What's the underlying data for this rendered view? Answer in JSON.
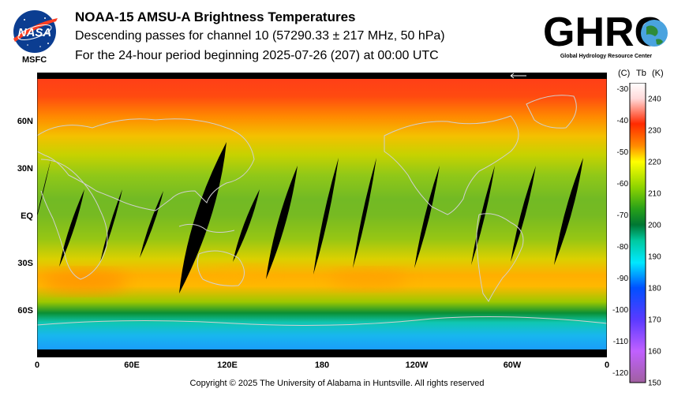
{
  "header": {
    "title": "NOAA-15 AMSU-A Brightness Temperatures",
    "subtitle1": "Descending passes for channel 10 (57290.33 ± 217 MHz, 50 hPa)",
    "subtitle2": "For the 24-hour period beginning 2025-07-26 (207) at 00:00 UTC"
  },
  "logos": {
    "nasa_text": "NASA",
    "msfc_text": "MSFC",
    "ghrc_text": "GHRC",
    "ghrc_tagline": "Global Hydrology Resource Center"
  },
  "map": {
    "lat_labels": [
      "60N",
      "30N",
      "EQ",
      "30S",
      "60S"
    ],
    "lon_labels": [
      "0",
      "60E",
      "120E",
      "180",
      "120W",
      "60W",
      "0"
    ],
    "gradient_stops": [
      {
        "lat": 90,
        "color": "#ff3b1a"
      },
      {
        "lat": 75,
        "color": "#ff4a10"
      },
      {
        "lat": 62,
        "color": "#ff8a00"
      },
      {
        "lat": 50,
        "color": "#f4c000"
      },
      {
        "lat": 38,
        "color": "#c6d200"
      },
      {
        "lat": 25,
        "color": "#90c818"
      },
      {
        "lat": 10,
        "color": "#72ba24"
      },
      {
        "lat": 0,
        "color": "#76ba22"
      },
      {
        "lat": -15,
        "color": "#96c614"
      },
      {
        "lat": -28,
        "color": "#dcd000"
      },
      {
        "lat": -38,
        "color": "#ffae00"
      },
      {
        "lat": -45,
        "color": "#ffb800"
      },
      {
        "lat": -55,
        "color": "#9cc800"
      },
      {
        "lat": -62,
        "color": "#0a8f35"
      },
      {
        "lat": -68,
        "color": "#10c7b2"
      },
      {
        "lat": -76,
        "color": "#18b7ee"
      },
      {
        "lat": -90,
        "color": "#1a8fff"
      }
    ]
  },
  "colorbar": {
    "unit_c": "(C)",
    "unit_tb": "Tb",
    "unit_k": "(K)",
    "celsius_ticks": [
      "-30",
      "-40",
      "-50",
      "-60",
      "-70",
      "-80",
      "-90",
      "-100",
      "-110",
      "-120"
    ],
    "kelvin_ticks": [
      "240",
      "230",
      "220",
      "210",
      "200",
      "190",
      "180",
      "170",
      "160",
      "150"
    ],
    "stops": [
      {
        "k": 245,
        "color": "#ffffff"
      },
      {
        "k": 240,
        "color": "#ffd9d9"
      },
      {
        "k": 232,
        "color": "#ff2a00"
      },
      {
        "k": 225,
        "color": "#ff8c00"
      },
      {
        "k": 220,
        "color": "#ffff00"
      },
      {
        "k": 212,
        "color": "#8fd400"
      },
      {
        "k": 205,
        "color": "#27a019"
      },
      {
        "k": 200,
        "color": "#007733"
      },
      {
        "k": 195,
        "color": "#00c9a0"
      },
      {
        "k": 188,
        "color": "#00e8ff"
      },
      {
        "k": 180,
        "color": "#0050ff"
      },
      {
        "k": 170,
        "color": "#5a3aff"
      },
      {
        "k": 160,
        "color": "#c060ff"
      },
      {
        "k": 150,
        "color": "#a060a0"
      }
    ]
  },
  "footer": {
    "copyright": "Copyright © 2025 The University of Alabama in Huntsville.  All rights reserved"
  }
}
